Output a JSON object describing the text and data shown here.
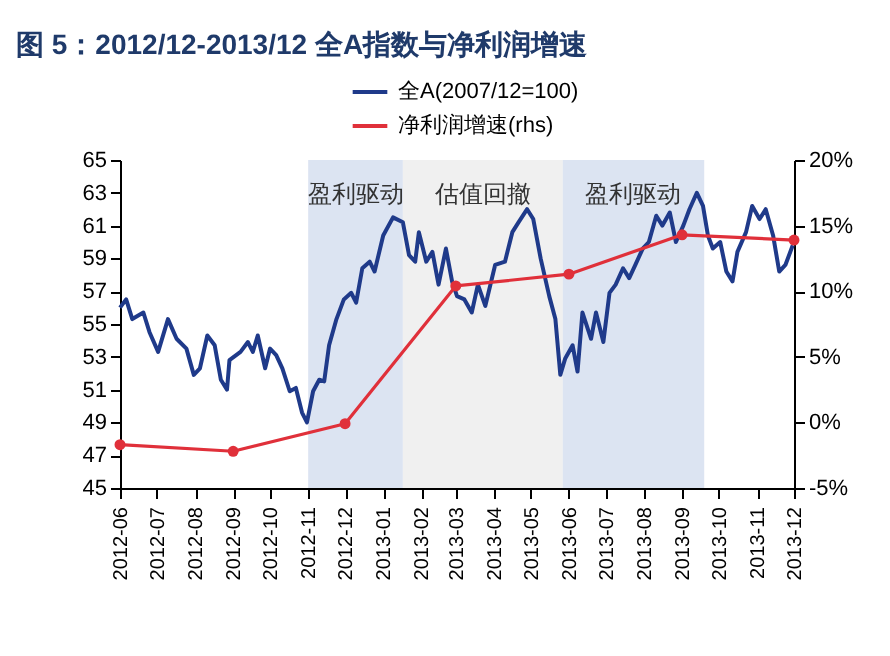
{
  "chart_data": {
    "type": "line",
    "title": "图 5：2012/12-2013/12 全A指数与净利润增速",
    "legend": "top",
    "xlim": [
      "2012-06",
      "2013-12"
    ],
    "xticks": [
      "2012-06",
      "2012-07",
      "2012-08",
      "2012-09",
      "2012-10",
      "2012-11",
      "2012-12",
      "2013-01",
      "2013-02",
      "2013-03",
      "2013-04",
      "2013-05",
      "2013-06",
      "2013-07",
      "2013-08",
      "2013-09",
      "2013-10",
      "2013-11",
      "2013-12"
    ],
    "ylim": [
      45,
      65
    ],
    "yticks": [
      45,
      47,
      49,
      51,
      53,
      55,
      57,
      59,
      61,
      63,
      65
    ],
    "y2lim": [
      -5,
      20
    ],
    "y2ticks": [
      {
        "value": -5,
        "label": "-5%"
      },
      {
        "value": 0,
        "label": "0%"
      },
      {
        "value": 5,
        "label": "5%"
      },
      {
        "value": 10,
        "label": "10%"
      },
      {
        "value": 15,
        "label": "15%"
      },
      {
        "value": 20,
        "label": "20%"
      }
    ],
    "bands": [
      {
        "axis": "x",
        "from": "2012-11-01",
        "to": "2013-01-17",
        "label": "盈利驱动",
        "color": "#dce4f2"
      },
      {
        "axis": "x",
        "from": "2013-01-17",
        "to": "2013-05-27",
        "label": "估值回撤",
        "color": "#f0f0f0"
      },
      {
        "axis": "x",
        "from": "2013-05-27",
        "to": "2013-09-19",
        "label": "盈利驱动",
        "color": "#dce4f2"
      }
    ],
    "series": [
      {
        "name": "全A(2007/12=100)",
        "color": "#1f3a8a",
        "type": "line",
        "marker": "none",
        "x": [
          "2012-06-01",
          "2012-06-06",
          "2012-06-11",
          "2012-06-20",
          "2012-06-25",
          "2012-07-02",
          "2012-07-10",
          "2012-07-17",
          "2012-07-25",
          "2012-07-31",
          "2012-08-05",
          "2012-08-11",
          "2012-08-17",
          "2012-08-22",
          "2012-08-27",
          "2012-08-29",
          "2012-09-07",
          "2012-09-13",
          "2012-09-17",
          "2012-09-21",
          "2012-09-27",
          "2012-10-01",
          "2012-10-06",
          "2012-10-11",
          "2012-10-17",
          "2012-10-22",
          "2012-10-27",
          "2012-10-31",
          "2012-11-05",
          "2012-11-10",
          "2012-11-14",
          "2012-11-18",
          "2012-11-24",
          "2012-11-30",
          "2012-12-06",
          "2012-12-10",
          "2012-12-15",
          "2012-12-21",
          "2012-12-25",
          "2013-01-01",
          "2013-01-09",
          "2013-01-17",
          "2013-01-22",
          "2013-01-27",
          "2013-01-30",
          "2013-02-05",
          "2013-02-10",
          "2013-02-15",
          "2013-02-21",
          "2013-02-26",
          "2013-03-02",
          "2013-03-08",
          "2013-03-14",
          "2013-03-19",
          "2013-03-25",
          "2013-04-02",
          "2013-04-10",
          "2013-04-16",
          "2013-04-21",
          "2013-04-28",
          "2013-05-03",
          "2013-05-09",
          "2013-05-16",
          "2013-05-21",
          "2013-05-25",
          "2013-05-29",
          "2013-06-04",
          "2013-06-08",
          "2013-06-12",
          "2013-06-19",
          "2013-06-23",
          "2013-06-29",
          "2013-07-04",
          "2013-07-09",
          "2013-07-15",
          "2013-07-20",
          "2013-07-25",
          "2013-07-31",
          "2013-08-05",
          "2013-08-11",
          "2013-08-16",
          "2013-08-22",
          "2013-08-27",
          "2013-09-02",
          "2013-09-07",
          "2013-09-13",
          "2013-09-18",
          "2013-09-22",
          "2013-09-26",
          "2013-10-02",
          "2013-10-07",
          "2013-10-12",
          "2013-10-16",
          "2013-10-23",
          "2013-10-28",
          "2013-11-03",
          "2013-11-08",
          "2013-11-14",
          "2013-11-19",
          "2013-11-24",
          "2013-11-30"
        ],
        "values": [
          56.0,
          56.5,
          55.3,
          55.7,
          54.5,
          53.3,
          55.3,
          54.1,
          53.5,
          51.9,
          52.3,
          54.3,
          53.7,
          51.6,
          51.0,
          52.8,
          53.3,
          53.9,
          53.3,
          54.3,
          52.3,
          53.5,
          53.1,
          52.3,
          50.9,
          51.1,
          49.6,
          49.0,
          50.9,
          51.6,
          51.5,
          53.7,
          55.3,
          56.5,
          56.9,
          56.3,
          58.4,
          58.8,
          58.2,
          60.4,
          61.5,
          61.2,
          59.2,
          58.8,
          60.6,
          58.8,
          59.4,
          57.4,
          59.6,
          57.6,
          56.7,
          56.5,
          55.7,
          57.4,
          56.1,
          58.6,
          58.8,
          60.6,
          61.2,
          62.0,
          61.4,
          59.0,
          56.7,
          55.3,
          51.9,
          52.9,
          53.7,
          52.1,
          55.7,
          54.1,
          55.7,
          53.9,
          56.9,
          57.4,
          58.4,
          57.8,
          58.6,
          59.6,
          60.0,
          61.6,
          61.0,
          61.8,
          60.0,
          61.0,
          62.0,
          63.0,
          62.2,
          60.4,
          59.6,
          60.0,
          58.2,
          57.6,
          59.4,
          60.6,
          62.2,
          61.4,
          62.0,
          60.4,
          58.2,
          58.6,
          59.8
        ]
      },
      {
        "name": "净利润增速(rhs)",
        "color": "#e0303a",
        "type": "line",
        "marker": "circle",
        "axis": "y2",
        "x": [
          "2012-06",
          "2012-09",
          "2012-12",
          "2013-03",
          "2013-06",
          "2013-09",
          "2013-12"
        ],
        "values": [
          -1.7,
          -2.2,
          -0.1,
          10.4,
          11.3,
          14.3,
          13.9
        ]
      }
    ]
  }
}
